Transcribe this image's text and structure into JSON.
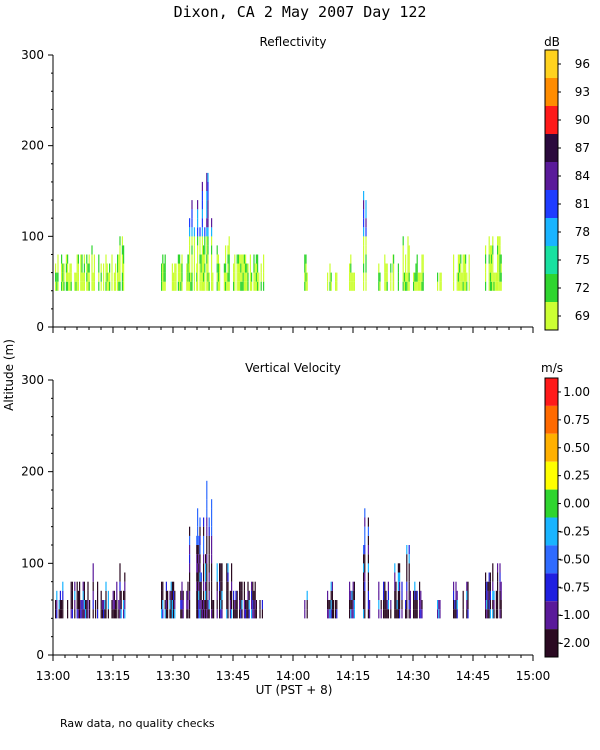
{
  "title": "Dixon, CA  2 May 2007  Day 122",
  "y_axis_label": "Altitude (m)",
  "x_axis_label": "UT  (PST + 8)",
  "footnote": "Raw data, no quality checks",
  "chart_data": [
    {
      "type": "heatmap",
      "title": "Reflectivity",
      "units": "dB",
      "ylim": [
        0,
        300
      ],
      "yticks": [
        "300",
        "200",
        "100",
        "0"
      ],
      "xticks": [
        "13:00",
        "13:15",
        "13:30",
        "13:45",
        "14:00",
        "14:15",
        "14:30",
        "14:45",
        "15:00"
      ],
      "colorbar": {
        "labels": [
          "96",
          "93",
          "90",
          "87",
          "84",
          "81",
          "78",
          "75",
          "72",
          "69"
        ],
        "colors": [
          "#ffd21f",
          "#ff8c00",
          "#ff1a1a",
          "#2b0a3d",
          "#5a1a9a",
          "#1f3cff",
          "#19b4ff",
          "#19e0a0",
          "#2fd52f",
          "#ccff33"
        ]
      }
    },
    {
      "type": "heatmap",
      "title": "Vertical Velocity",
      "units": "m/s",
      "ylim": [
        0,
        300
      ],
      "yticks": [
        "300",
        "200",
        "100",
        "0"
      ],
      "xticks": [
        "13:00",
        "13:15",
        "13:30",
        "13:45",
        "14:00",
        "14:15",
        "14:30",
        "14:45",
        "15:00"
      ],
      "colorbar": {
        "labels": [
          "1.00",
          "0.75",
          "0.50",
          "0.25",
          "0.00",
          "-0.25",
          "-0.50",
          "-0.75",
          "-1.00",
          "-2.00"
        ],
        "colors": [
          "#ff1a1a",
          "#ff6a00",
          "#ffb000",
          "#ffff00",
          "#2fd52f",
          "#19b4ff",
          "#2f6bff",
          "#1f1fe0",
          "#5a1a9a",
          "#2b0a22"
        ]
      }
    }
  ]
}
